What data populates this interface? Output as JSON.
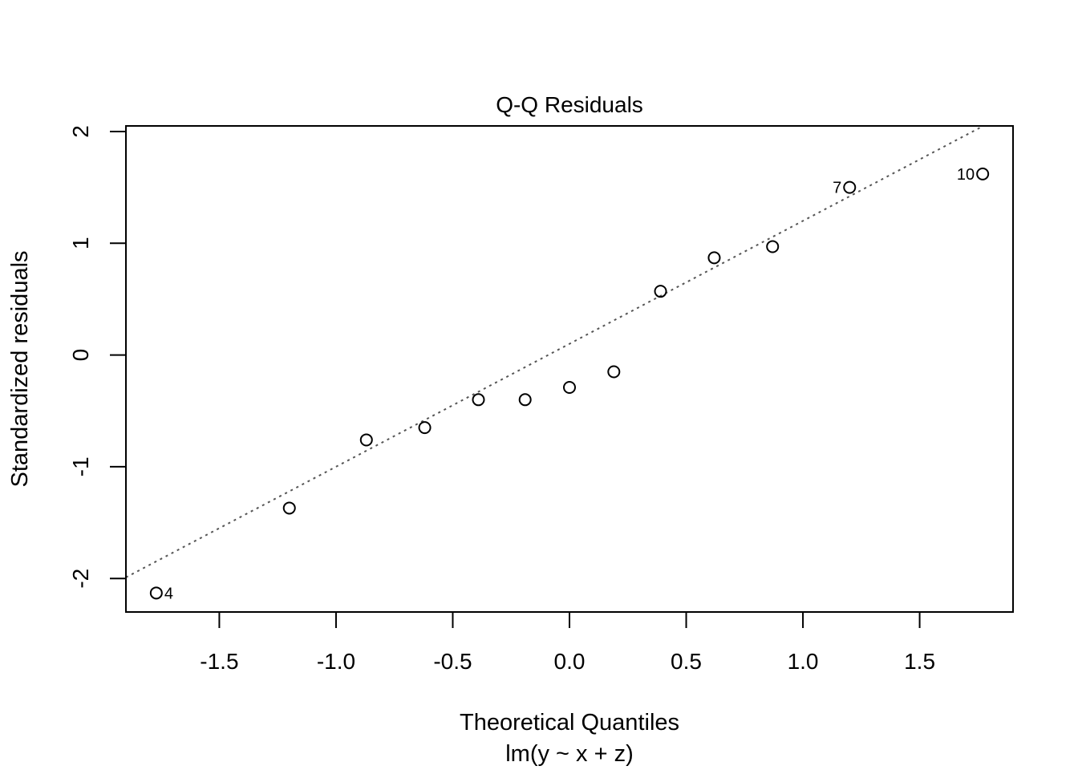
{
  "chart_data": {
    "type": "scatter",
    "title": "Q-Q Residuals",
    "xlabel": "Theoretical Quantiles",
    "xlabel_sub": "lm(y ~ x + z)",
    "ylabel": "Standardized residuals",
    "xlim": [
      -1.9,
      1.9
    ],
    "ylim": [
      -2.3,
      2.05
    ],
    "x_ticks": [
      -1.5,
      -1.0,
      -0.5,
      0.0,
      0.5,
      1.0,
      1.5
    ],
    "x_tick_labels": [
      "-1.5",
      "-1.0",
      "-0.5",
      "0.0",
      "0.5",
      "1.0",
      "1.5"
    ],
    "y_ticks": [
      -2,
      -1,
      0,
      1,
      2
    ],
    "y_tick_labels": [
      "-2",
      "-1",
      "0",
      "1",
      "2"
    ],
    "grid": false,
    "points": [
      {
        "x": -1.77,
        "y": -2.13,
        "label": "4",
        "label_side": "right"
      },
      {
        "x": -1.2,
        "y": -1.37,
        "label": ""
      },
      {
        "x": -0.87,
        "y": -0.76,
        "label": ""
      },
      {
        "x": -0.62,
        "y": -0.65,
        "label": ""
      },
      {
        "x": -0.39,
        "y": -0.4,
        "label": ""
      },
      {
        "x": -0.19,
        "y": -0.4,
        "label": ""
      },
      {
        "x": 0.0,
        "y": -0.29,
        "label": ""
      },
      {
        "x": 0.19,
        "y": -0.15,
        "label": ""
      },
      {
        "x": 0.39,
        "y": 0.57,
        "label": ""
      },
      {
        "x": 0.62,
        "y": 0.87,
        "label": ""
      },
      {
        "x": 0.87,
        "y": 0.97,
        "label": ""
      },
      {
        "x": 1.2,
        "y": 1.5,
        "label": "7",
        "label_side": "left"
      },
      {
        "x": 1.77,
        "y": 1.62,
        "label": "10",
        "label_side": "left"
      }
    ],
    "reference_line": {
      "style": "dotted",
      "color": "#555555",
      "intercept": 0.1,
      "slope": 1.1
    },
    "point_style": "open-circle"
  }
}
